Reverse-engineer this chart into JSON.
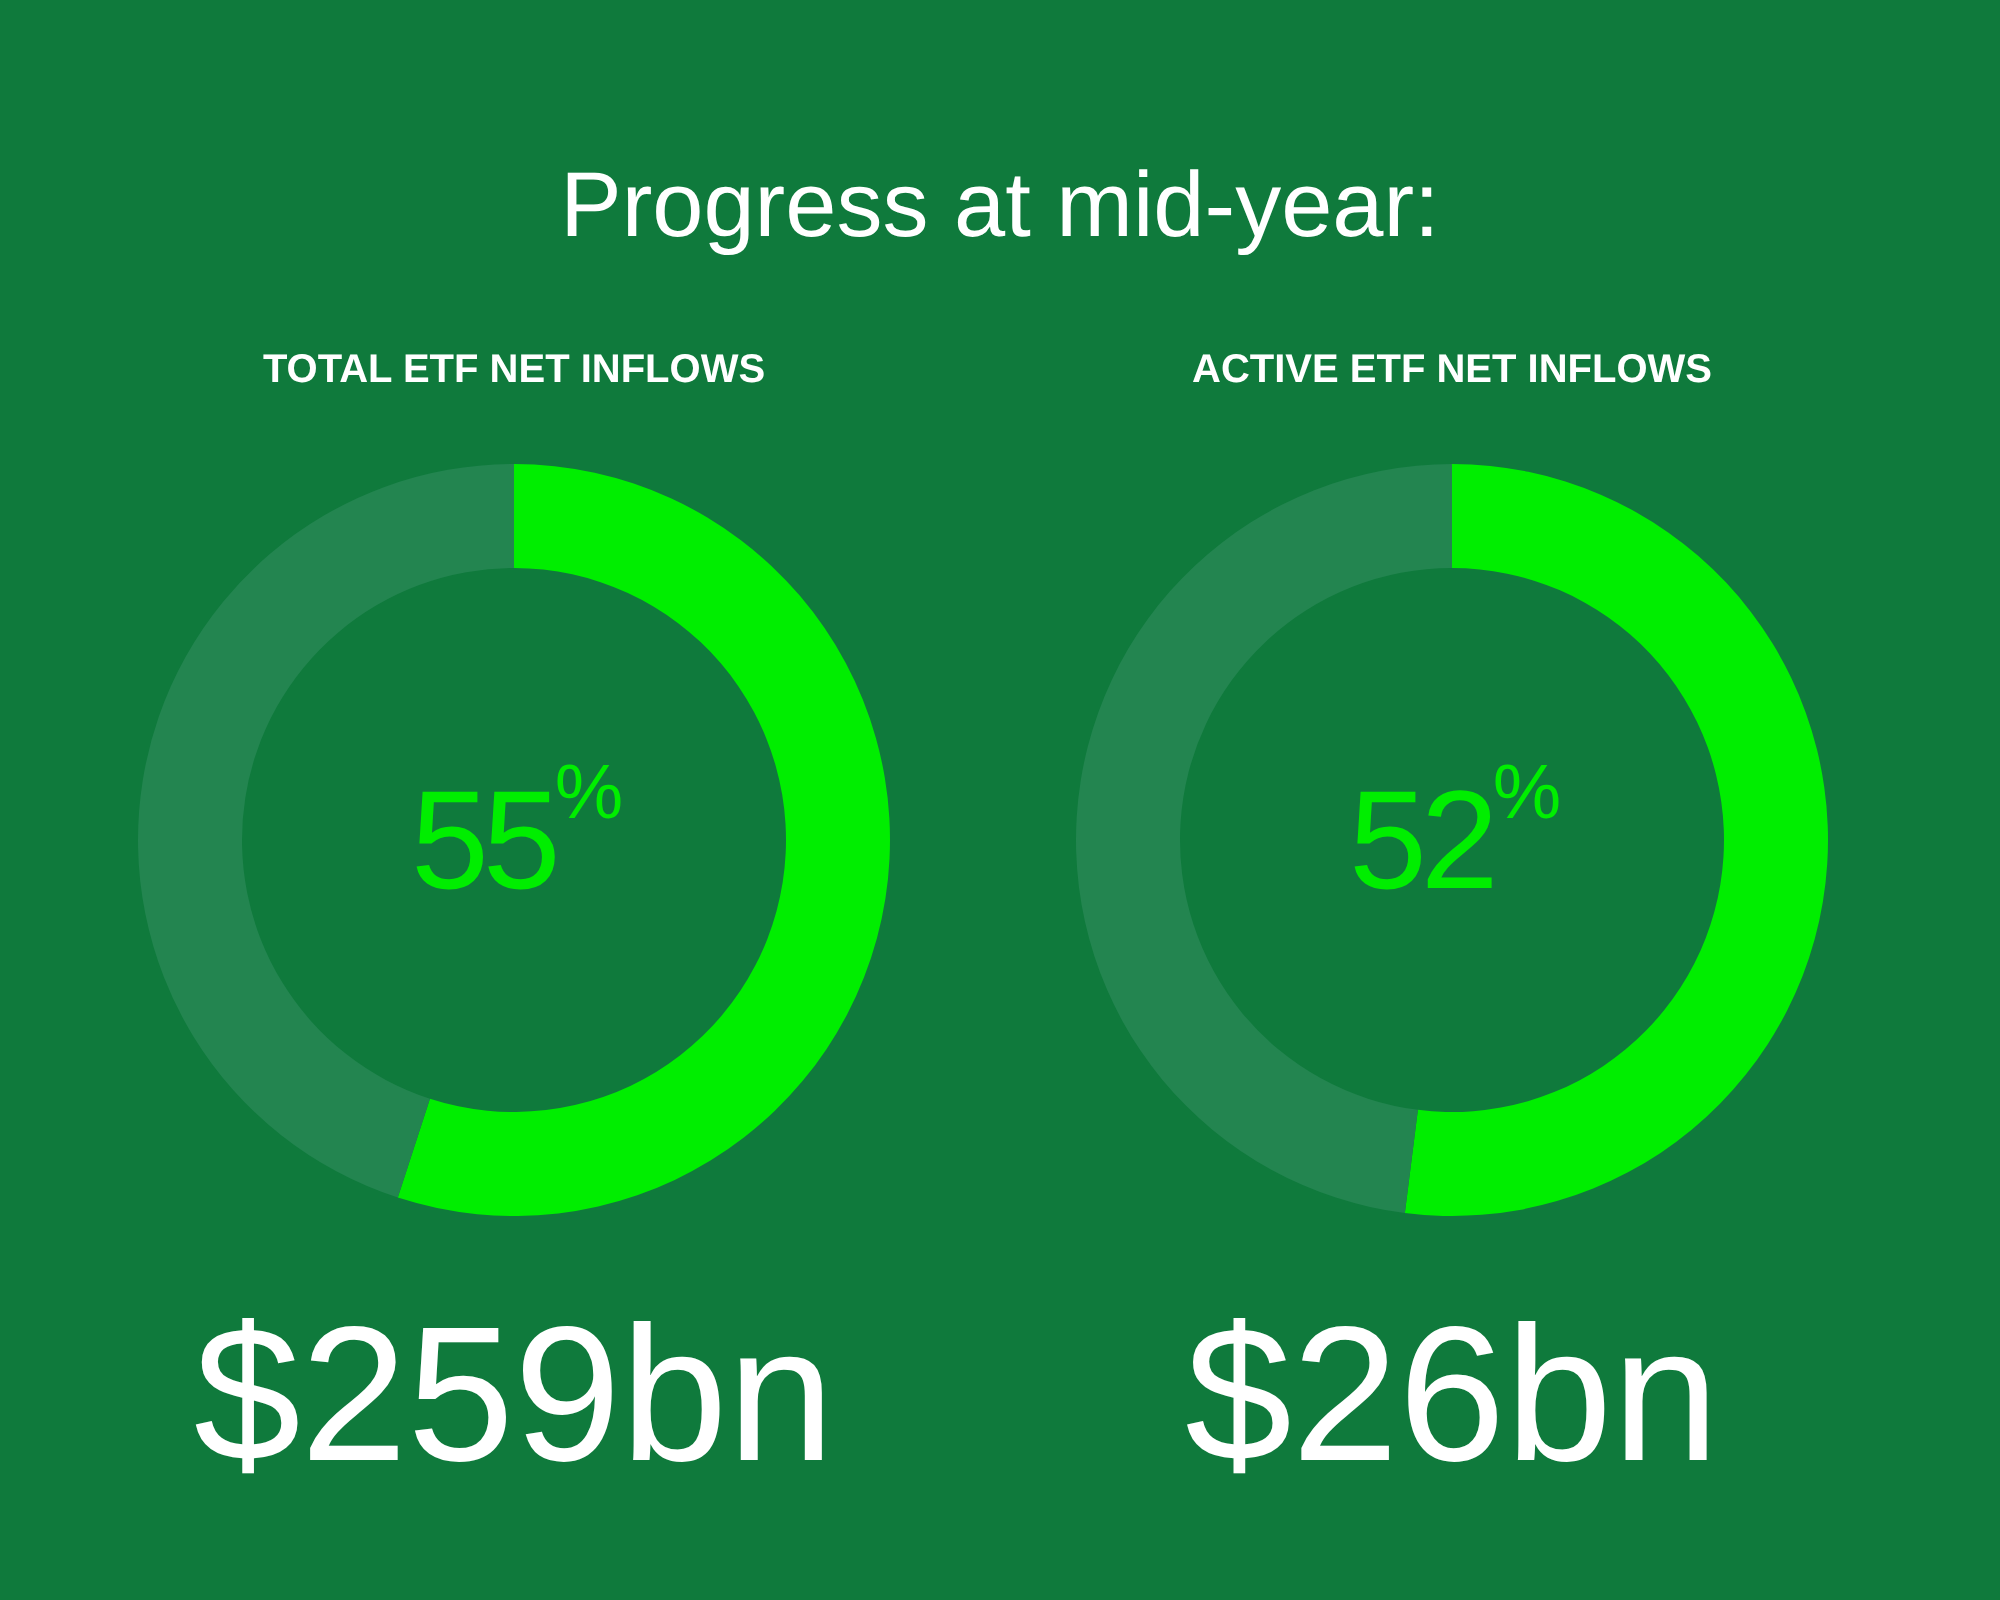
{
  "chart_data": [
    {
      "type": "donut",
      "title": "Progress at mid-year:",
      "subtitle": "TOTAL ETF NET INFLOWS",
      "categories": [
        null,
        null
      ],
      "values": [
        55,
        45
      ],
      "colors": [
        "#00ee00",
        "#238550"
      ],
      "value_labels": [
        "55$^{%}$",
        null
      ],
      "annotations": [
        "$259bn"
      ]
    },
    {
      "type": "donut",
      "subtitle": "ACTIVE ETF NET INFLOWS",
      "categories": [
        null,
        null
      ],
      "values": [
        52,
        48
      ],
      "colors": [
        "#00ee00",
        "#238550"
      ],
      "value_labels": [
        "52$^{%}$",
        null
      ],
      "annotations": [
        "$26bn"
      ]
    }
  ]
}
